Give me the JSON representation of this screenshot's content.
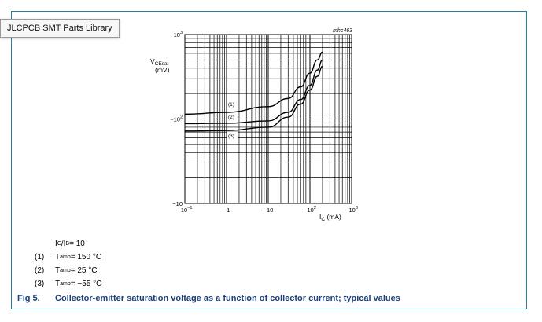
{
  "tooltip": "JLCPCB SMT Parts Library",
  "chart_data": {
    "type": "line",
    "code": "mhc463",
    "ylabel_line1": "V",
    "ylabel_sub": "CEsat",
    "ylabel_unit": "(mV)",
    "xlabel_main": "I",
    "xlabel_sub": "C",
    "xlabel_unit": " (mA)",
    "x_scale": "log",
    "y_scale": "log",
    "grid": true,
    "xlim": [
      -0.1,
      -1000
    ],
    "ylim": [
      -10,
      -1000
    ],
    "xticks": [
      {
        "base": "−10",
        "exp": "−1"
      },
      {
        "base": "−1",
        "exp": ""
      },
      {
        "base": "−10",
        "exp": ""
      },
      {
        "base": "−10",
        "exp": "2"
      },
      {
        "base": "−10",
        "exp": "3"
      }
    ],
    "yticks": [
      {
        "base": "−10",
        "exp": ""
      },
      {
        "base": "−10",
        "exp": "2"
      },
      {
        "base": "−10",
        "exp": "3"
      }
    ],
    "series": [
      {
        "name": "(1)",
        "x": [
          -0.1,
          -1,
          -10,
          -30,
          -60,
          -100,
          -150,
          -200
        ],
        "y": [
          -114,
          -120,
          -140,
          -175,
          -240,
          -350,
          -500,
          -620
        ]
      },
      {
        "name": "(2)",
        "x": [
          -0.1,
          -1,
          -10,
          -30,
          -60,
          -100,
          -150,
          -200
        ],
        "y": [
          -88,
          -89,
          -95,
          -120,
          -170,
          -250,
          -380,
          -500
        ]
      },
      {
        "name": "(3)",
        "x": [
          -0.1,
          -1,
          -10,
          -30,
          -60,
          -100,
          -150,
          -200
        ],
        "y": [
          -72,
          -73,
          -80,
          -105,
          -150,
          -220,
          -320,
          -420
        ]
      }
    ]
  },
  "conditions": {
    "ratio_a": "I",
    "ratio_a_sub": "C",
    "ratio_sep": "/I",
    "ratio_b_sub": "B",
    "ratio_value": " = 10"
  },
  "notes": [
    {
      "num": "(1)",
      "pre": "T",
      "sub": "amb",
      "value": " = 150 °C"
    },
    {
      "num": "(2)",
      "pre": "T",
      "sub": "amb",
      "value": " = 25 °C"
    },
    {
      "num": "(3)",
      "pre": "T",
      "sub": "amb",
      "value": " = −55 °C"
    }
  ],
  "caption": {
    "fig": "Fig 5.",
    "text": "Collector-emitter saturation voltage as a function of collector current; typical values"
  }
}
